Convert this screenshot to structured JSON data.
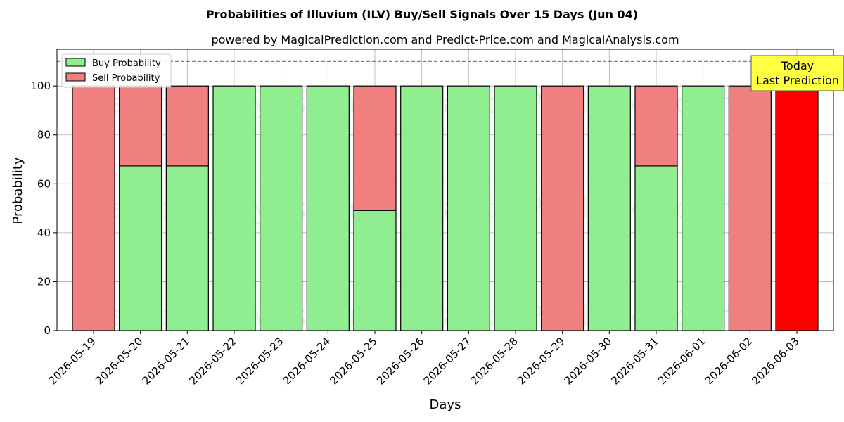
{
  "chart_data": {
    "type": "bar",
    "stacked": true,
    "title": "Probabilities of Illuvium (ILV) Buy/Sell Signals Over 15 Days (Jun 04)",
    "subtitle": "powered by MagicalPrediction.com and Predict-Price.com and MagicalAnalysis.com",
    "xlabel": "Days",
    "ylabel": "Probability",
    "ylim": [
      0,
      115
    ],
    "yticks": [
      0,
      20,
      40,
      60,
      80,
      100
    ],
    "grid": true,
    "legend_position": "top-left",
    "reference_line": 110,
    "categories": [
      "2026-05-19",
      "2026-05-20",
      "2026-05-21",
      "2026-05-22",
      "2026-05-23",
      "2026-05-24",
      "2026-05-25",
      "2026-05-26",
      "2026-05-27",
      "2026-05-28",
      "2026-05-29",
      "2026-05-30",
      "2026-05-31",
      "2026-06-01",
      "2026-06-02",
      "2026-06-03"
    ],
    "series": [
      {
        "name": "Buy Probability",
        "color": "#90ee90",
        "values": [
          0,
          67.3,
          67.3,
          100,
          100,
          100,
          49.1,
          100,
          100,
          100,
          0,
          100,
          67.3,
          100,
          0,
          0
        ]
      },
      {
        "name": "Sell Probability",
        "color": "#f08080",
        "values": [
          100,
          32.7,
          32.7,
          0,
          0,
          0,
          50.9,
          0,
          0,
          0,
          100,
          0,
          32.7,
          0,
          100,
          100
        ]
      }
    ],
    "highlight": {
      "index": 15,
      "color": "#ff0000"
    },
    "annotation": {
      "lines": [
        "Today",
        "Last Prediction"
      ],
      "color": "#ffff44"
    },
    "watermarks": [
      "MagicalAnalysis.com",
      "MagicalPrediction.com"
    ]
  }
}
